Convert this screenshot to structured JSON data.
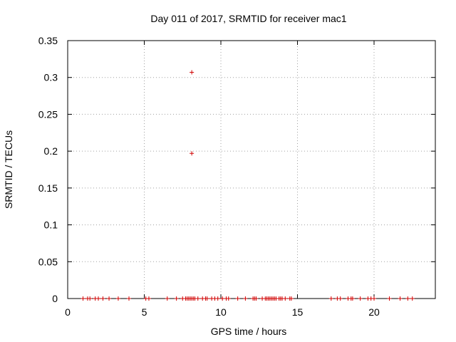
{
  "chart_data": {
    "type": "scatter",
    "title": "Day 011 of 2017, SRMTID for receiver mac1",
    "xlabel": "GPS time / hours",
    "ylabel": "SRMTID / TECUs",
    "xlim": [
      0,
      24
    ],
    "ylim": [
      0,
      0.35
    ],
    "xticks": [
      0,
      5,
      10,
      15,
      20
    ],
    "xtick_labels": [
      "0",
      "5",
      "10",
      "15",
      "20"
    ],
    "yticks": [
      0,
      0.05,
      0.1,
      0.15,
      0.2,
      0.25,
      0.3,
      0.35
    ],
    "ytick_labels": [
      "0",
      "0.05",
      "0.1",
      "0.15",
      "0.2",
      "0.25",
      "0.3",
      "0.35"
    ],
    "grid": true,
    "marker": "+",
    "color": "#d00000",
    "series": [
      {
        "name": "SRMTID",
        "x": [
          8.1,
          8.1,
          1.0,
          1.3,
          1.45,
          1.8,
          2.0,
          2.3,
          2.7,
          3.3,
          4.0,
          5.1,
          5.3,
          6.5,
          7.1,
          7.5,
          7.7,
          7.8,
          7.9,
          8.0,
          8.1,
          8.2,
          8.3,
          8.5,
          8.8,
          9.0,
          9.1,
          9.4,
          9.6,
          9.8,
          10.1,
          10.35,
          10.5,
          11.1,
          11.6,
          12.1,
          12.2,
          12.3,
          12.7,
          12.9,
          13.0,
          13.1,
          13.2,
          13.3,
          13.4,
          13.5,
          13.6,
          13.8,
          13.9,
          14.0,
          14.2,
          14.5,
          14.6,
          17.2,
          17.6,
          17.8,
          18.3,
          18.5,
          18.6,
          19.1,
          19.6,
          19.8,
          20.0,
          21.0,
          21.7,
          22.2,
          22.5
        ],
        "y": [
          0.307,
          0.197,
          0,
          0,
          0,
          0,
          0,
          0,
          0,
          0,
          0,
          0,
          0,
          0,
          0,
          0,
          0,
          0,
          0,
          0,
          0,
          0,
          0,
          0,
          0,
          0,
          0,
          0,
          0,
          0,
          0,
          0,
          0,
          0,
          0,
          0,
          0,
          0,
          0,
          0,
          0,
          0,
          0,
          0,
          0,
          0,
          0,
          0,
          0,
          0,
          0,
          0,
          0,
          0,
          0,
          0,
          0,
          0,
          0,
          0,
          0,
          0,
          0,
          0,
          0,
          0,
          0
        ]
      }
    ]
  }
}
